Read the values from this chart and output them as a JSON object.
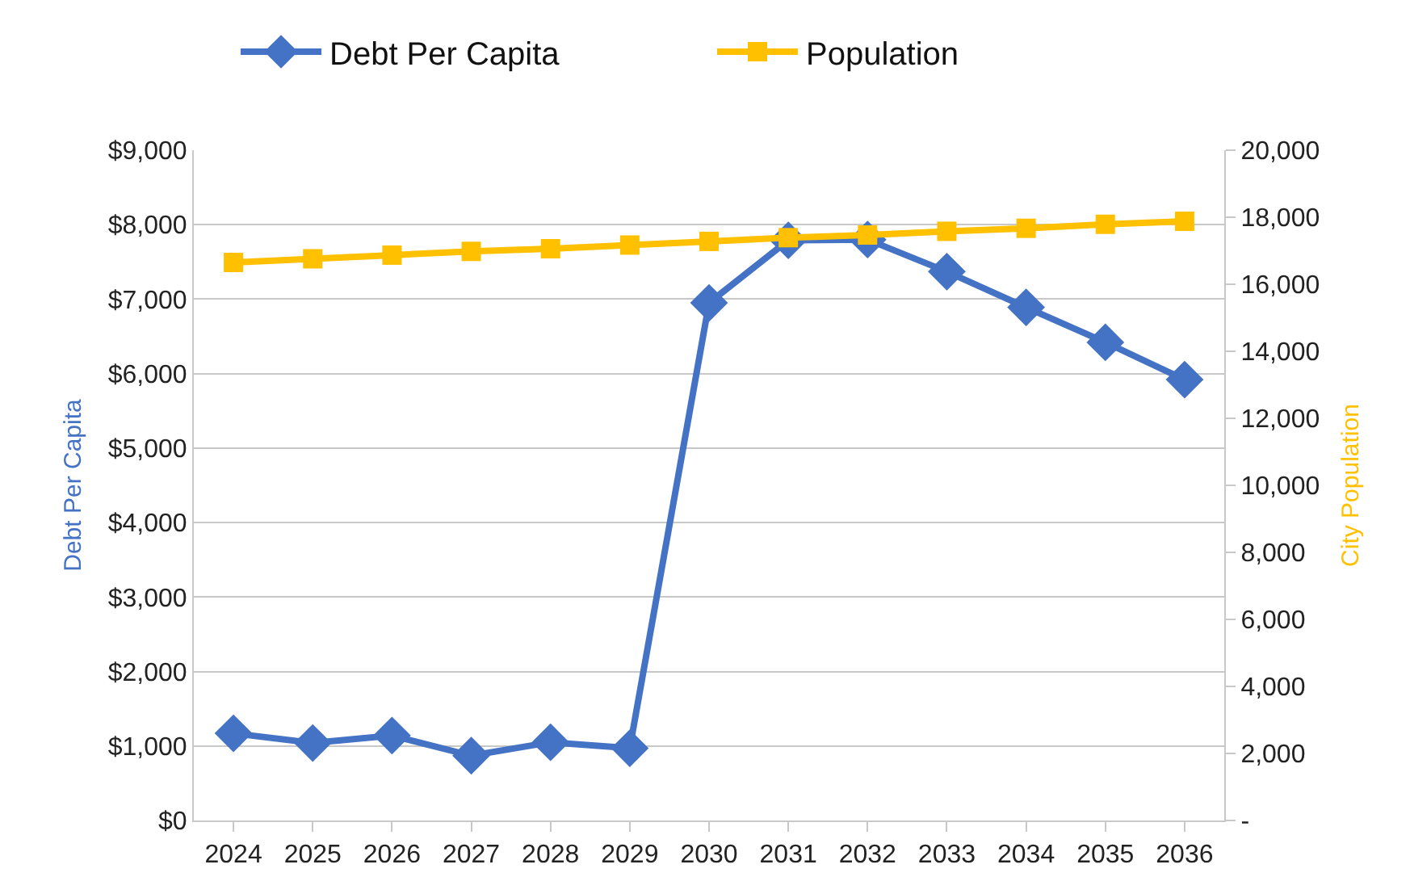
{
  "chart_data": {
    "type": "line",
    "ylabel": "Debt Per Capita",
    "y2label": "City Population",
    "categories": [
      "2024",
      "2025",
      "2026",
      "2027",
      "2028",
      "2029",
      "2030",
      "2031",
      "2032",
      "2033",
      "2034",
      "2035",
      "2036"
    ],
    "series": [
      {
        "name": "Debt Per Capita",
        "color": "#4472c4",
        "marker": "diamond",
        "values": [
          1170,
          1040,
          1140,
          870,
          1050,
          970,
          6950,
          7790,
          7800,
          7370,
          6890,
          6420,
          5920
        ]
      },
      {
        "name": "Population",
        "color": "#ffc000",
        "marker": "square",
        "axis": "y2",
        "values": [
          16650,
          16760,
          16870,
          16980,
          17060,
          17170,
          17280,
          17390,
          17470,
          17580,
          17670,
          17790,
          17880
        ]
      }
    ],
    "ylim": [
      0,
      9000
    ],
    "yticks": [
      {
        "value": 0,
        "label": "$0"
      },
      {
        "value": 1000,
        "label": "$1,000"
      },
      {
        "value": 2000,
        "label": "$2,000"
      },
      {
        "value": 3000,
        "label": "$3,000"
      },
      {
        "value": 4000,
        "label": "$4,000"
      },
      {
        "value": 5000,
        "label": "$5,000"
      },
      {
        "value": 6000,
        "label": "$6,000"
      },
      {
        "value": 7000,
        "label": "$7,000"
      },
      {
        "value": 8000,
        "label": "$8,000"
      },
      {
        "value": 9000,
        "label": "$9,000"
      }
    ],
    "y2lim": [
      0,
      20000
    ],
    "y2ticks": [
      {
        "value": 0,
        "label": "-"
      },
      {
        "value": 2000,
        "label": "2,000"
      },
      {
        "value": 4000,
        "label": "4,000"
      },
      {
        "value": 6000,
        "label": "6,000"
      },
      {
        "value": 8000,
        "label": "8,000"
      },
      {
        "value": 10000,
        "label": "10,000"
      },
      {
        "value": 12000,
        "label": "12,000"
      },
      {
        "value": 14000,
        "label": "14,000"
      },
      {
        "value": 16000,
        "label": "16,000"
      },
      {
        "value": 18000,
        "label": "18,000"
      },
      {
        "value": 20000,
        "label": "20,000"
      }
    ],
    "grid": "y",
    "legend": "top",
    "line_style": "solid"
  }
}
